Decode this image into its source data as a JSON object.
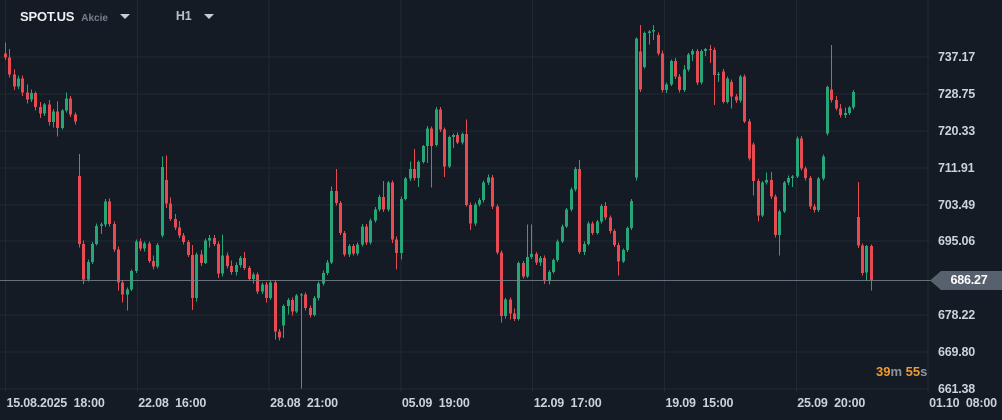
{
  "header": {
    "symbol": "SPOT.US",
    "instrument_type": "Akcie",
    "timeframe": "H1"
  },
  "countdown": {
    "minutes": "39",
    "minutes_unit": "m",
    "seconds": "55",
    "seconds_unit": "s"
  },
  "current_price_badge": "686.27",
  "colors": {
    "background": "#141b24",
    "grid": "#202834",
    "up": "#26a677",
    "down": "#e84a52",
    "price_line": "#76808c",
    "badge_bg": "#57616d",
    "countdown_accent": "#f09b2f",
    "axis_text": "#ccd2d9"
  },
  "chart_data": {
    "type": "candlestick",
    "title": "SPOT.US Akcie H1 candlestick chart",
    "legend_position": "none",
    "grid": "on",
    "y_axis": {
      "ticks": [
        "737.17",
        "728.75",
        "720.33",
        "711.91",
        "703.49",
        "695.06",
        "678.22",
        "669.80",
        "661.38"
      ],
      "tick_step": 8.421,
      "current_price": 686.27,
      "ylim": [
        659,
        747
      ]
    },
    "x_axis": {
      "labels": [
        "15.08.2025  18:00",
        "22.08  16:00",
        "28.08  21:00",
        "05.09  19:00",
        "12.09  17:00",
        "19.09  15:00",
        "25.09  20:00",
        "01.10  08:00"
      ]
    },
    "candles": [
      [
        738.0,
        740.5,
        736.5,
        737.0
      ],
      [
        737.0,
        739.0,
        732.5,
        733.2
      ],
      [
        733.2,
        734.3,
        729.6,
        730.4
      ],
      [
        730.4,
        733.0,
        729.9,
        732.3
      ],
      [
        732.3,
        732.9,
        728.3,
        729.1
      ],
      [
        729.1,
        730.9,
        726.5,
        727.5
      ],
      [
        727.5,
        729.7,
        726.9,
        728.9
      ],
      [
        728.9,
        729.3,
        724.9,
        725.7
      ],
      [
        725.7,
        726.9,
        723.3,
        724.3
      ],
      [
        724.3,
        726.7,
        723.7,
        726.3
      ],
      [
        726.3,
        727.3,
        721.5,
        722.3
      ],
      [
        722.3,
        725.3,
        721.1,
        724.7
      ],
      [
        724.7,
        727.0,
        719.0,
        721.0
      ],
      [
        721.0,
        725.3,
        720.6,
        724.9
      ],
      [
        724.9,
        729.1,
        724.5,
        727.7
      ],
      [
        727.7,
        728.3,
        723.5,
        724.0
      ],
      [
        724.0,
        724.5,
        721.8,
        722.4
      ],
      [
        710.0,
        715.0,
        693.7,
        694.5
      ],
      [
        694.5,
        695.3,
        685.4,
        686.4
      ],
      [
        686.4,
        690.9,
        685.9,
        690.4
      ],
      [
        690.4,
        694.9,
        689.9,
        694.5
      ],
      [
        694.5,
        699.1,
        694.1,
        698.6
      ],
      [
        698.6,
        699.4,
        696.8,
        698.9
      ],
      [
        698.9,
        704.7,
        698.4,
        704.2
      ],
      [
        704.2,
        704.9,
        698.5,
        699.0
      ],
      [
        699.0,
        699.6,
        692.7,
        693.2
      ],
      [
        693.2,
        693.9,
        683.9,
        685.7
      ],
      [
        685.7,
        686.3,
        681.1,
        682.9
      ],
      [
        682.9,
        684.5,
        679.3,
        684.1
      ],
      [
        684.1,
        688.7,
        683.7,
        688.3
      ],
      [
        688.3,
        695.5,
        687.9,
        695.1
      ],
      [
        695.1,
        695.7,
        692.9,
        693.4
      ],
      [
        693.4,
        695.0,
        692.8,
        694.6
      ],
      [
        694.6,
        695.1,
        690.1,
        690.6
      ],
      [
        690.6,
        691.8,
        688.7,
        689.3
      ],
      [
        689.3,
        694.7,
        688.9,
        694.2
      ],
      [
        696.4,
        714.4,
        696.0,
        712.1
      ],
      [
        709.1,
        714.7,
        702.7,
        703.7
      ],
      [
        703.7,
        705.1,
        699.7,
        700.2
      ],
      [
        700.2,
        701.3,
        697.7,
        698.2
      ],
      [
        698.2,
        699.7,
        695.9,
        696.4
      ],
      [
        696.4,
        697.0,
        694.4,
        694.9
      ],
      [
        694.9,
        695.4,
        691.5,
        692.0
      ],
      [
        692.0,
        694.3,
        679.4,
        682.1
      ],
      [
        682.1,
        692.5,
        681.3,
        692.1
      ],
      [
        692.1,
        693.1,
        689.5,
        690.1
      ],
      [
        690.1,
        695.7,
        689.9,
        695.3
      ],
      [
        695.3,
        696.5,
        693.7,
        695.9
      ],
      [
        695.9,
        696.5,
        694.0,
        694.5
      ],
      [
        694.5,
        695.0,
        686.7,
        687.7
      ],
      [
        687.7,
        696.7,
        687.1,
        691.9
      ],
      [
        691.9,
        692.5,
        688.9,
        689.5
      ],
      [
        689.5,
        690.7,
        687.5,
        688.1
      ],
      [
        688.1,
        690.3,
        687.3,
        689.7
      ],
      [
        689.7,
        691.7,
        689.1,
        691.3
      ],
      [
        691.3,
        692.7,
        688.5,
        689.0
      ],
      [
        689.0,
        689.5,
        686.0,
        686.5
      ],
      [
        686.5,
        688.0,
        685.5,
        687.5
      ],
      [
        687.5,
        688.0,
        683.1,
        683.6
      ],
      [
        683.6,
        685.7,
        683.1,
        685.2
      ],
      [
        685.2,
        685.8,
        681.1,
        682.2
      ],
      [
        682.2,
        686.1,
        681.7,
        685.7
      ],
      [
        685.7,
        686.3,
        672.7,
        674.5
      ],
      [
        674.5,
        675.1,
        672.5,
        673.1
      ],
      [
        675.9,
        680.7,
        673.0,
        680.3
      ],
      [
        680.3,
        682.2,
        678.4,
        681.7
      ],
      [
        681.7,
        682.3,
        678.1,
        679.1
      ],
      [
        679.1,
        683.1,
        678.7,
        682.7
      ],
      [
        682.7,
        683.3,
        661.5,
        683.0
      ],
      [
        683.0,
        683.4,
        679.3,
        679.9
      ],
      [
        679.9,
        680.4,
        677.7,
        678.3
      ],
      [
        678.3,
        682.6,
        677.9,
        682.1
      ],
      [
        682.1,
        685.9,
        681.6,
        685.5
      ],
      [
        685.5,
        688.4,
        685.0,
        687.9
      ],
      [
        687.9,
        690.8,
        687.4,
        690.3
      ],
      [
        690.3,
        707.6,
        689.9,
        706.6
      ],
      [
        706.6,
        711.6,
        703.3,
        703.8
      ],
      [
        703.8,
        704.3,
        696.5,
        697.0
      ],
      [
        697.0,
        697.5,
        691.6,
        692.1
      ],
      [
        692.1,
        694.5,
        691.5,
        694.0
      ],
      [
        694.0,
        694.5,
        691.8,
        692.3
      ],
      [
        692.3,
        694.8,
        691.9,
        694.4
      ],
      [
        694.4,
        699.0,
        693.9,
        698.5
      ],
      [
        698.5,
        699.0,
        694.3,
        694.8
      ],
      [
        694.8,
        700.3,
        694.4,
        699.8
      ],
      [
        699.8,
        702.9,
        699.4,
        702.4
      ],
      [
        702.4,
        705.7,
        701.9,
        705.2
      ],
      [
        705.2,
        708.9,
        701.8,
        702.3
      ],
      [
        702.3,
        708.9,
        701.9,
        708.5
      ],
      [
        708.5,
        709.0,
        694.7,
        695.5
      ],
      [
        695.5,
        696.2,
        688.6,
        692.4
      ],
      [
        692.4,
        705.3,
        690.9,
        704.8
      ],
      [
        704.8,
        709.8,
        704.4,
        709.4
      ],
      [
        709.4,
        713.3,
        708.9,
        711.6
      ],
      [
        711.6,
        716.2,
        709.0,
        709.5
      ],
      [
        709.5,
        713.5,
        707.5,
        713.2
      ],
      [
        713.2,
        717.1,
        712.8,
        716.8
      ],
      [
        716.8,
        721.4,
        713.0,
        720.8
      ],
      [
        720.8,
        721.3,
        707.4,
        716.8
      ],
      [
        717.1,
        725.8,
        716.7,
        725.2
      ],
      [
        725.2,
        725.7,
        720.1,
        720.6
      ],
      [
        720.6,
        721.1,
        709.8,
        712.2
      ],
      [
        712.2,
        719.2,
        711.8,
        718.9
      ],
      [
        718.9,
        719.7,
        716.4,
        719.4
      ],
      [
        719.4,
        719.9,
        717.3,
        717.6
      ],
      [
        717.6,
        719.9,
        717.2,
        719.6
      ],
      [
        719.6,
        722.9,
        703.0,
        703.4
      ],
      [
        703.4,
        704.0,
        697.7,
        699.1
      ],
      [
        699.1,
        704.0,
        698.6,
        703.5
      ],
      [
        703.5,
        705.0,
        703.0,
        704.5
      ],
      [
        704.5,
        709.0,
        704.0,
        708.5
      ],
      [
        708.5,
        710.4,
        708.0,
        709.7
      ],
      [
        709.7,
        710.2,
        702.5,
        703.0
      ],
      [
        703.0,
        703.5,
        692.1,
        692.5
      ],
      [
        692.5,
        693.0,
        676.5,
        678.0
      ],
      [
        678.0,
        682.2,
        677.5,
        681.8
      ],
      [
        681.8,
        682.3,
        677.2,
        678.6
      ],
      [
        678.6,
        679.7,
        676.9,
        677.4
      ],
      [
        677.4,
        690.5,
        677.0,
        690.1
      ],
      [
        690.1,
        690.6,
        686.6,
        687.1
      ],
      [
        687.1,
        698.9,
        686.7,
        691.5
      ],
      [
        691.5,
        698.9,
        691.1,
        692.2
      ],
      [
        692.2,
        692.7,
        689.7,
        690.2
      ],
      [
        690.2,
        691.7,
        689.5,
        691.3
      ],
      [
        691.3,
        691.8,
        685.4,
        686.0
      ],
      [
        686.0,
        688.5,
        685.2,
        688.1
      ],
      [
        688.1,
        691.2,
        687.7,
        690.8
      ],
      [
        690.8,
        695.5,
        690.4,
        695.1
      ],
      [
        695.1,
        698.9,
        694.7,
        698.5
      ],
      [
        698.5,
        702.7,
        698.1,
        702.3
      ],
      [
        702.3,
        707.4,
        701.9,
        706.9
      ],
      [
        706.9,
        712.0,
        706.5,
        711.6
      ],
      [
        711.6,
        713.6,
        692.2,
        692.6
      ],
      [
        692.6,
        695.0,
        692.0,
        694.5
      ],
      [
        694.5,
        699.6,
        694.1,
        699.1
      ],
      [
        699.1,
        699.6,
        696.5,
        697.0
      ],
      [
        697.0,
        700.0,
        696.6,
        699.6
      ],
      [
        699.6,
        703.6,
        699.2,
        703.2
      ],
      [
        703.2,
        704.1,
        700.0,
        700.5
      ],
      [
        700.5,
        701.0,
        696.9,
        697.4
      ],
      [
        697.4,
        697.9,
        693.8,
        694.3
      ],
      [
        694.3,
        694.8,
        687.3,
        690.5
      ],
      [
        690.5,
        693.5,
        690.1,
        693.1
      ],
      [
        693.1,
        698.5,
        692.7,
        698.1
      ],
      [
        698.1,
        704.7,
        697.7,
        704.3
      ],
      [
        709.7,
        741.6,
        709.0,
        741.4
      ],
      [
        738.4,
        744.5,
        729.2,
        729.7
      ],
      [
        734.9,
        743.0,
        734.5,
        742.7
      ],
      [
        742.7,
        743.3,
        740.0,
        743.0
      ],
      [
        743.0,
        744.5,
        741.0,
        743.3
      ],
      [
        742.2,
        742.8,
        737.5,
        738.0
      ],
      [
        738.0,
        738.6,
        729.1,
        729.6
      ],
      [
        729.6,
        731.3,
        728.9,
        730.9
      ],
      [
        730.9,
        736.6,
        730.5,
        736.2
      ],
      [
        736.2,
        736.9,
        732.2,
        732.7
      ],
      [
        732.7,
        733.3,
        729.1,
        729.6
      ],
      [
        729.6,
        735.3,
        729.2,
        734.3
      ],
      [
        734.3,
        738.1,
        733.9,
        737.7
      ],
      [
        737.7,
        739.0,
        736.2,
        738.5
      ],
      [
        738.5,
        739.0,
        730.8,
        731.3
      ],
      [
        731.3,
        738.9,
        730.9,
        738.5
      ],
      [
        738.5,
        739.2,
        737.4,
        739.0
      ],
      [
        739.0,
        739.9,
        735.8,
        738.8
      ],
      [
        738.8,
        739.3,
        726.2,
        733.1
      ],
      [
        733.1,
        733.7,
        731.5,
        733.3
      ],
      [
        733.9,
        734.4,
        726.5,
        726.9
      ],
      [
        726.9,
        732.7,
        726.5,
        732.3
      ],
      [
        731.5,
        732.0,
        725.4,
        728.1
      ],
      [
        728.1,
        728.7,
        726.7,
        727.2
      ],
      [
        727.2,
        733.1,
        726.8,
        732.7
      ],
      [
        732.7,
        733.2,
        722.1,
        722.5
      ],
      [
        722.5,
        723.0,
        713.5,
        714.0
      ],
      [
        717.2,
        717.7,
        705.6,
        708.9
      ],
      [
        708.9,
        709.4,
        699.6,
        701.0
      ],
      [
        701.0,
        708.9,
        700.6,
        708.5
      ],
      [
        708.5,
        710.8,
        708.1,
        709.1
      ],
      [
        709.1,
        710.9,
        704.8,
        705.3
      ],
      [
        705.3,
        705.8,
        696.0,
        696.5
      ],
      [
        696.5,
        702.3,
        691.9,
        701.9
      ],
      [
        701.9,
        708.9,
        701.5,
        708.5
      ],
      [
        708.5,
        710.1,
        708.0,
        709.6
      ],
      [
        709.6,
        710.2,
        707.5,
        709.9
      ],
      [
        709.9,
        719.0,
        709.5,
        718.6
      ],
      [
        718.6,
        719.1,
        711.2,
        711.7
      ],
      [
        711.7,
        712.2,
        709.0,
        709.5
      ],
      [
        709.5,
        710.0,
        702.5,
        703.0
      ],
      [
        703.0,
        703.6,
        701.7,
        702.2
      ],
      [
        702.2,
        709.8,
        701.8,
        709.4
      ],
      [
        709.4,
        714.9,
        709.0,
        714.5
      ],
      [
        719.7,
        730.7,
        719.3,
        730.3
      ],
      [
        729.8,
        739.9,
        726.8,
        727.3
      ],
      [
        727.3,
        728.3,
        724.9,
        725.4
      ],
      [
        725.4,
        726.4,
        723.4,
        723.9
      ],
      [
        723.9,
        725.6,
        723.2,
        724.4
      ],
      [
        724.4,
        726.0,
        723.9,
        725.6
      ],
      [
        725.6,
        729.6,
        725.2,
        729.2
      ],
      [
        700.6,
        708.6,
        693.6,
        694.1
      ],
      [
        694.1,
        694.6,
        687.3,
        687.8
      ],
      [
        688.0,
        694.3,
        686.1,
        694.0
      ],
      [
        694.0,
        694.4,
        683.9,
        686.3
      ]
    ]
  }
}
